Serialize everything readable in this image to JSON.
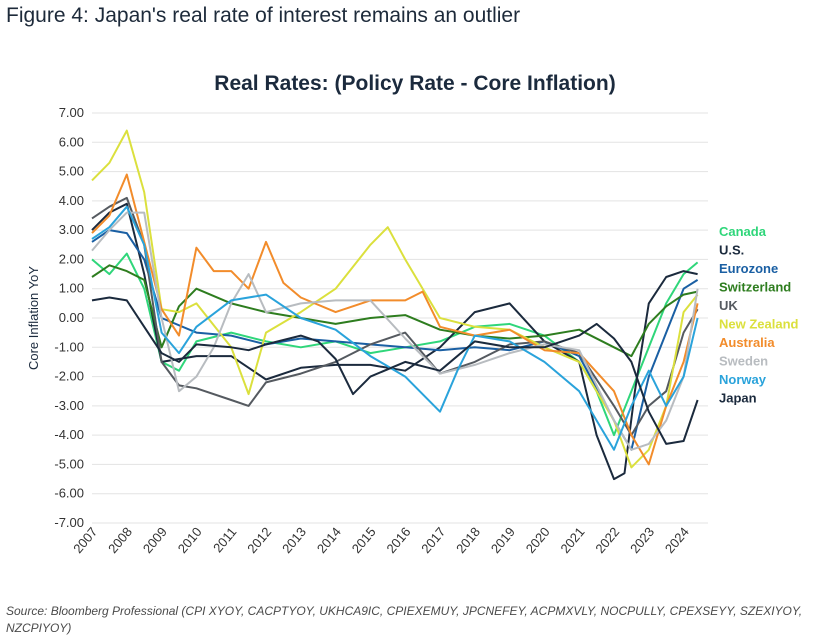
{
  "figure_title": "Figure 4: Japan's real rate of interest remains an outlier",
  "source": "Source: Bloomberg Professional (CPI XYOY, CACPTYOY, UKHCA9IC, CPIEXEMUY, JPCNEFEY, ACPMXVLY, NOCPULLY, CPEXSEYY, SZEXIYOY, NZCPIYOY)",
  "chart_data": {
    "type": "line",
    "title": "Real Rates: (Policy Rate - Core Inflation)",
    "ylabel": "Core Inflation YoY",
    "xlabel": "",
    "ylim": [
      -7,
      7
    ],
    "xlim": [
      2007.0,
      2024.7
    ],
    "yticks": [
      "7.00",
      "6.00",
      "5.00",
      "4.00",
      "3.00",
      "2.00",
      "1.00",
      "0.00",
      "-1.00",
      "-2.00",
      "-3.00",
      "-4.00",
      "-5.00",
      "-6.00",
      "-7.00"
    ],
    "xticks": [
      "2007",
      "2008",
      "2009",
      "2010",
      "2011",
      "2012",
      "2013",
      "2014",
      "2015",
      "2016",
      "2017",
      "2018",
      "2019",
      "2020",
      "2021",
      "2022",
      "2023",
      "2024"
    ],
    "grid": "horizontal",
    "legend_position": "right",
    "series": [
      {
        "name": "Canada",
        "color": "#2fd67a",
        "x": [
          2007,
          2007.5,
          2008,
          2008.5,
          2009,
          2009.5,
          2010,
          2011,
          2012,
          2013,
          2014,
          2015,
          2016,
          2017,
          2018,
          2019,
          2020,
          2021,
          2021.5,
          2022,
          2022.5,
          2023,
          2023.5,
          2024,
          2024.4
        ],
        "y": [
          2.0,
          1.5,
          2.2,
          1.0,
          -1.5,
          -1.8,
          -0.8,
          -0.5,
          -0.8,
          -1.0,
          -0.8,
          -1.2,
          -1.0,
          -0.8,
          -0.3,
          -0.2,
          -0.6,
          -1.5,
          -2.5,
          -4.0,
          -2.5,
          -1.0,
          0.5,
          1.5,
          1.9
        ]
      },
      {
        "name": "U.S.",
        "color": "#1b2a3d",
        "x": [
          2007,
          2007.5,
          2008,
          2008.5,
          2009,
          2010,
          2011,
          2012,
          2013,
          2014,
          2015,
          2016,
          2017,
          2018,
          2019,
          2020,
          2021,
          2021.5,
          2022,
          2022.3,
          2022.6,
          2023,
          2023.5,
          2024,
          2024.4
        ],
        "y": [
          3.0,
          3.6,
          3.9,
          1.5,
          -1.5,
          -1.3,
          -1.3,
          -2.1,
          -1.7,
          -1.6,
          -1.6,
          -1.8,
          -1.0,
          0.2,
          0.5,
          -0.8,
          -1.5,
          -4.0,
          -5.5,
          -5.3,
          -2.5,
          0.5,
          1.4,
          1.6,
          1.5
        ]
      },
      {
        "name": "Eurozone",
        "color": "#1a5fa3",
        "x": [
          2007,
          2007.5,
          2008,
          2008.5,
          2009,
          2010,
          2011,
          2012,
          2013,
          2014,
          2015,
          2016,
          2017,
          2018,
          2019,
          2020,
          2021,
          2022,
          2022.5,
          2023,
          2023.5,
          2024,
          2024.4
        ],
        "y": [
          2.6,
          3.0,
          2.9,
          2.0,
          0.0,
          -0.5,
          -0.6,
          -0.9,
          -0.7,
          -0.8,
          -0.9,
          -1.0,
          -1.1,
          -1.0,
          -1.1,
          -0.8,
          -1.3,
          -3.5,
          -4.5,
          -2.0,
          -0.5,
          1.0,
          1.3
        ]
      },
      {
        "name": "Switzerland",
        "color": "#2e7d1f",
        "x": [
          2007,
          2007.5,
          2008,
          2008.5,
          2009,
          2009.5,
          2010,
          2011,
          2012,
          2013,
          2014,
          2015,
          2016,
          2017,
          2018,
          2019,
          2020,
          2021,
          2022,
          2022.5,
          2023,
          2023.5,
          2024,
          2024.4
        ],
        "y": [
          1.4,
          1.8,
          1.6,
          1.3,
          -1.0,
          0.4,
          1.0,
          0.5,
          0.2,
          0.0,
          -0.2,
          0.0,
          0.1,
          -0.4,
          -0.6,
          -0.7,
          -0.6,
          -0.4,
          -1.0,
          -1.3,
          -0.2,
          0.4,
          0.8,
          0.9
        ]
      },
      {
        "name": "UK",
        "color": "#555a60",
        "x": [
          2007,
          2007.5,
          2008,
          2008.5,
          2009,
          2009.5,
          2010,
          2011,
          2011.5,
          2012,
          2013,
          2014,
          2015,
          2016,
          2017,
          2018,
          2019,
          2020,
          2021,
          2022,
          2022.5,
          2023,
          2023.5,
          2024,
          2024.4
        ],
        "y": [
          3.4,
          3.8,
          4.1,
          2.5,
          -1.5,
          -2.3,
          -2.4,
          -2.8,
          -3.0,
          -2.2,
          -1.9,
          -1.5,
          -0.9,
          -0.5,
          -1.9,
          -1.5,
          -0.9,
          -0.8,
          -1.2,
          -3.0,
          -4.0,
          -3.0,
          -2.5,
          -0.5,
          0.3
        ]
      },
      {
        "name": "New Zealand",
        "color": "#dbe03d",
        "x": [
          2007,
          2007.5,
          2008,
          2008.5,
          2009,
          2009.5,
          2010,
          2011,
          2011.5,
          2012,
          2013,
          2014,
          2015,
          2015.5,
          2016,
          2017,
          2018,
          2019,
          2020,
          2021,
          2022,
          2022.5,
          2023,
          2023.5,
          2024,
          2024.4
        ],
        "y": [
          4.7,
          5.3,
          6.4,
          4.3,
          0.3,
          0.2,
          0.5,
          -1.0,
          -2.6,
          -0.5,
          0.2,
          1.0,
          2.5,
          3.1,
          2.0,
          0.0,
          -0.3,
          -0.4,
          -1.0,
          -1.5,
          -3.5,
          -5.1,
          -4.5,
          -3.0,
          0.2,
          0.8
        ]
      },
      {
        "name": "Australia",
        "color": "#f28c2b",
        "x": [
          2007,
          2007.5,
          2008,
          2008.5,
          2009,
          2009.5,
          2010,
          2010.5,
          2011,
          2011.5,
          2012,
          2012.5,
          2013,
          2014,
          2015,
          2016,
          2016.5,
          2017,
          2018,
          2019,
          2020,
          2021,
          2022,
          2022.5,
          2023,
          2023.5,
          2024,
          2024.4
        ],
        "y": [
          2.9,
          3.5,
          4.9,
          2.6,
          0.3,
          -0.6,
          2.4,
          1.6,
          1.6,
          1.0,
          2.6,
          1.2,
          0.7,
          0.2,
          0.6,
          0.6,
          0.9,
          -0.3,
          -0.6,
          -0.4,
          -1.1,
          -1.2,
          -2.5,
          -4.0,
          -5.0,
          -3.0,
          -1.5,
          0.5
        ]
      },
      {
        "name": "Sweden",
        "color": "#b8bcc0",
        "x": [
          2007,
          2007.5,
          2008,
          2008.5,
          2009,
          2009.5,
          2010,
          2010.5,
          2011,
          2011.5,
          2012,
          2013,
          2014,
          2015,
          2016,
          2017,
          2018,
          2019,
          2020,
          2021,
          2022,
          2022.5,
          2023,
          2023.5,
          2024,
          2024.4
        ],
        "y": [
          2.3,
          3.0,
          3.6,
          3.6,
          0.0,
          -2.5,
          -2.0,
          -1.0,
          0.5,
          1.5,
          0.2,
          0.5,
          0.6,
          0.6,
          -0.7,
          -1.9,
          -1.6,
          -1.2,
          -0.9,
          -1.1,
          -3.5,
          -4.5,
          -4.3,
          -3.5,
          -2.0,
          1.0
        ]
      },
      {
        "name": "Norway",
        "color": "#2aa3db",
        "x": [
          2007,
          2007.5,
          2008,
          2008.5,
          2009,
          2009.5,
          2010,
          2011,
          2012,
          2013,
          2014,
          2015,
          2016,
          2017,
          2017.5,
          2018,
          2019,
          2020,
          2021,
          2022,
          2022.5,
          2023,
          2023.5,
          2024,
          2024.4
        ],
        "y": [
          2.7,
          3.1,
          3.8,
          2.5,
          -0.5,
          -1.2,
          -0.3,
          0.6,
          0.8,
          0.0,
          -0.4,
          -1.3,
          -2.0,
          -3.2,
          -1.8,
          -0.6,
          -0.8,
          -1.5,
          -2.5,
          -4.5,
          -3.0,
          -1.8,
          -3.0,
          -2.0,
          0.0
        ]
      },
      {
        "name": "Japan",
        "color": "#1b2a3d",
        "x": [
          2007,
          2007.5,
          2008,
          2008.5,
          2009,
          2009.5,
          2010,
          2011,
          2011.5,
          2012,
          2013,
          2013.5,
          2014,
          2014.5,
          2015,
          2016,
          2017,
          2018,
          2019,
          2020,
          2021,
          2021.5,
          2022,
          2022.5,
          2023,
          2023.5,
          2024,
          2024.4
        ],
        "y": [
          0.6,
          0.7,
          0.6,
          -0.3,
          -1.2,
          -1.5,
          -0.9,
          -1.0,
          -1.1,
          -0.9,
          -0.6,
          -0.8,
          -1.4,
          -2.6,
          -2.0,
          -1.5,
          -1.8,
          -0.8,
          -1.0,
          -1.0,
          -0.6,
          -0.2,
          -0.7,
          -1.5,
          -3.2,
          -4.3,
          -4.2,
          -2.8
        ]
      }
    ]
  }
}
